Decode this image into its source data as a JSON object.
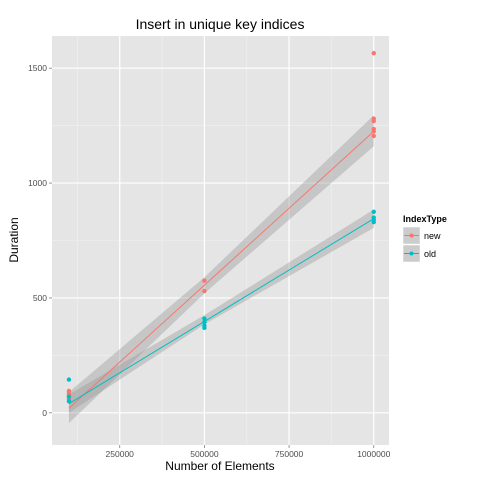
{
  "chart_data": {
    "type": "scatter",
    "title": "Insert in unique key indices",
    "xlabel": "Number of Elements",
    "ylabel": "Duration",
    "xlim": [
      50000,
      1045000
    ],
    "ylim": [
      -140,
      1640
    ],
    "x_ticks": [
      250000,
      500000,
      750000,
      1000000
    ],
    "x_tick_labels": [
      "250000",
      "500000",
      "750000",
      "1000000"
    ],
    "y_ticks": [
      0,
      500,
      1000,
      1500
    ],
    "y_tick_labels": [
      "0",
      "500",
      "1000",
      "1500"
    ],
    "grid": true,
    "legend": {
      "title": "IndexType",
      "position": "right"
    },
    "series": [
      {
        "name": "new",
        "color": "#f8766d",
        "points": [
          [
            100000,
            60
          ],
          [
            100000,
            75
          ],
          [
            100000,
            85
          ],
          [
            100000,
            95
          ],
          [
            500000,
            530
          ],
          [
            500000,
            575
          ],
          [
            1000000,
            1205
          ],
          [
            1000000,
            1225
          ],
          [
            1000000,
            1235
          ],
          [
            1000000,
            1270
          ],
          [
            1000000,
            1280
          ],
          [
            1000000,
            1565
          ]
        ],
        "fit": {
          "x": [
            100000,
            1000000
          ],
          "y": [
            20,
            1225
          ]
        },
        "ci_low": [
          -45,
          520,
          1160
        ],
        "ci_high": [
          90,
          590,
          1295
        ],
        "ci_x": [
          100000,
          500000,
          1000000
        ]
      },
      {
        "name": "old",
        "color": "#00bfc4",
        "points": [
          [
            100000,
            50
          ],
          [
            100000,
            70
          ],
          [
            100000,
            145
          ],
          [
            500000,
            370
          ],
          [
            500000,
            380
          ],
          [
            500000,
            395
          ],
          [
            500000,
            410
          ],
          [
            1000000,
            830
          ],
          [
            1000000,
            840
          ],
          [
            1000000,
            850
          ],
          [
            1000000,
            875
          ]
        ],
        "fit": {
          "x": [
            100000,
            1000000
          ],
          "y": [
            40,
            845
          ]
        },
        "ci_low": [
          0,
          385,
          805
        ],
        "ci_high": [
          80,
          425,
          885
        ],
        "ci_x": [
          100000,
          500000,
          1000000
        ]
      }
    ]
  }
}
